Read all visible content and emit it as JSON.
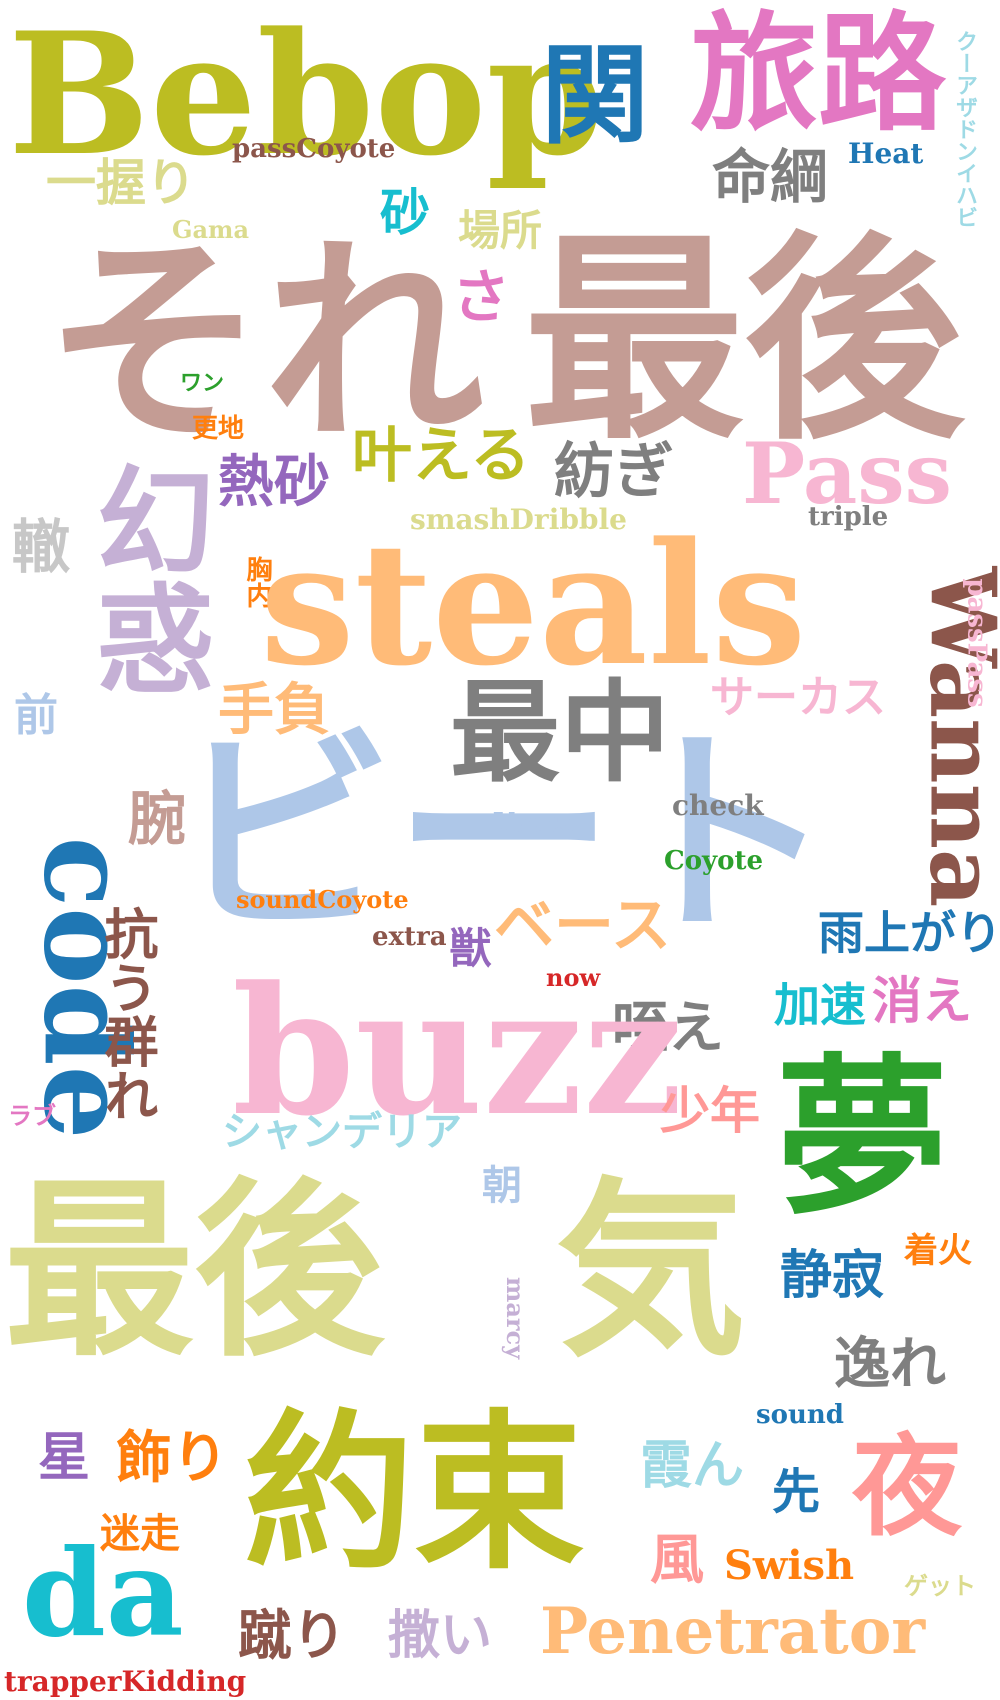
{
  "words": [
    {
      "text": "Bebop",
      "color": "#bcbd22"
    },
    {
      "text": "関",
      "color": "#1f77b4"
    },
    {
      "text": "旅路",
      "color": "#e377c2"
    },
    {
      "text": "クーアザドンイハビ",
      "color": "#9edae5"
    },
    {
      "text": "Heat",
      "color": "#1f77b4"
    },
    {
      "text": "命綱",
      "color": "#7f7f7f"
    },
    {
      "text": "passCoyote",
      "color": "#8c564b"
    },
    {
      "text": "一握り",
      "color": "#dbdb8d"
    },
    {
      "text": "Gama",
      "color": "#dbdb8d"
    },
    {
      "text": "砂",
      "color": "#17becf"
    },
    {
      "text": "場所",
      "color": "#dbdb8d"
    },
    {
      "text": "それ",
      "color": "#c49c94"
    },
    {
      "text": "さ",
      "color": "#e377c2"
    },
    {
      "text": "最後",
      "color": "#c49c94"
    },
    {
      "text": "ワン",
      "color": "#2ca02c"
    },
    {
      "text": "更地",
      "color": "#ff7f0e"
    },
    {
      "text": "熱砂",
      "color": "#9467bd"
    },
    {
      "text": "叶える",
      "color": "#bcbd22"
    },
    {
      "text": "紡ぎ",
      "color": "#7f7f7f"
    },
    {
      "text": "Pass",
      "color": "#f7b6d2"
    },
    {
      "text": "triple",
      "color": "#7f7f7f"
    },
    {
      "text": "幻惑",
      "color": "#c5b0d5"
    },
    {
      "text": "轍",
      "color": "#c7c7c7"
    },
    {
      "text": "胸内",
      "color": "#ff7f0e"
    },
    {
      "text": "smashDribble",
      "color": "#dbdb8d"
    },
    {
      "text": "steals",
      "color": "#ffbb78"
    },
    {
      "text": "Wanna",
      "color": "#8c564b"
    },
    {
      "text": "passPass",
      "color": "#f7b6d2"
    },
    {
      "text": "前",
      "color": "#aec7e8"
    },
    {
      "text": "手負",
      "color": "#ffbb78"
    },
    {
      "text": "サーカス",
      "color": "#f7b6d2"
    },
    {
      "text": "最中",
      "color": "#7f7f7f"
    },
    {
      "text": "code",
      "color": "#1f77b4"
    },
    {
      "text": "腕",
      "color": "#c49c94"
    },
    {
      "text": "ビート",
      "color": "#aec7e8"
    },
    {
      "text": "Vasco",
      "color": "#aec7e8"
    },
    {
      "text": "check",
      "color": "#7f7f7f"
    },
    {
      "text": "Coyote",
      "color": "#2ca02c"
    },
    {
      "text": "soundCoyote",
      "color": "#ff7f0e"
    },
    {
      "text": "extra",
      "color": "#8c564b"
    },
    {
      "text": "ベース",
      "color": "#ffbb78"
    },
    {
      "text": "雨上がり",
      "color": "#1f77b4"
    },
    {
      "text": "抗う群れ",
      "color": "#8c564b"
    },
    {
      "text": "獣",
      "color": "#9467bd"
    },
    {
      "text": "now",
      "color": "#d62728"
    },
    {
      "text": "加速",
      "color": "#17becf"
    },
    {
      "text": "消え",
      "color": "#e377c2"
    },
    {
      "text": "咥え",
      "color": "#7f7f7f"
    },
    {
      "text": "buzz",
      "color": "#f7b6d2"
    },
    {
      "text": "ラブ",
      "color": "#e377c2"
    },
    {
      "text": "シャンデリア",
      "color": "#9edae5"
    },
    {
      "text": "少年",
      "color": "#ff9896"
    },
    {
      "text": "夢",
      "color": "#2ca02c"
    },
    {
      "text": "最後",
      "color": "#dbdb8d"
    },
    {
      "text": "朝",
      "color": "#aec7e8"
    },
    {
      "text": "気",
      "color": "#dbdb8d"
    },
    {
      "text": "marcy",
      "color": "#c5b0d5"
    },
    {
      "text": "着火",
      "color": "#ff7f0e"
    },
    {
      "text": "静寂",
      "color": "#1f77b4"
    },
    {
      "text": "逸れ",
      "color": "#7f7f7f"
    },
    {
      "text": "sound",
      "color": "#1f77b4"
    },
    {
      "text": "星",
      "color": "#9467bd"
    },
    {
      "text": "飾り",
      "color": "#ff7f0e"
    },
    {
      "text": "約束",
      "color": "#bcbd22"
    },
    {
      "text": "霞ん",
      "color": "#9edae5"
    },
    {
      "text": "先",
      "color": "#1f77b4"
    },
    {
      "text": "夜",
      "color": "#ff9896"
    },
    {
      "text": "迷走",
      "color": "#ff7f0e"
    },
    {
      "text": "da",
      "color": "#17becf"
    },
    {
      "text": "風",
      "color": "#ff9896"
    },
    {
      "text": "Swish",
      "color": "#ff7f0e"
    },
    {
      "text": "ゲット",
      "color": "#dbdb8d"
    },
    {
      "text": "蹴り",
      "color": "#8c564b"
    },
    {
      "text": "撒い",
      "color": "#c5b0d5"
    },
    {
      "text": "Penetrator",
      "color": "#ffbb78"
    },
    {
      "text": "trapperKidding",
      "color": "#d62728"
    }
  ]
}
